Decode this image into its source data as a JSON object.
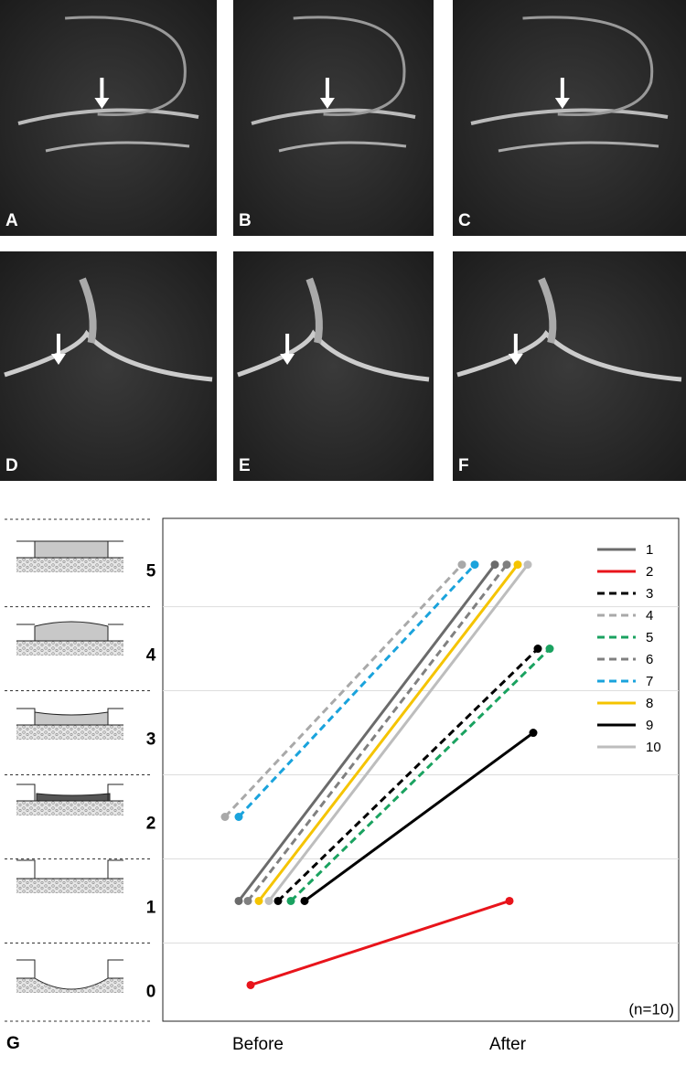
{
  "panels": [
    "A",
    "B",
    "C",
    "D",
    "E",
    "F"
  ],
  "chart_data": {
    "type": "line",
    "panel_label": "G",
    "annotation": "(n=10)",
    "categories": [
      "Before",
      "After"
    ],
    "ylim": [
      -0.43,
      5.55
    ],
    "yticks": [
      0,
      1,
      2,
      3,
      4,
      5
    ],
    "series": [
      {
        "name": "1",
        "color": "#6b6b6b",
        "dashed": false,
        "values": [
          1,
          5
        ]
      },
      {
        "name": "2",
        "color": "#e8141b",
        "dashed": false,
        "values": [
          0,
          1
        ]
      },
      {
        "name": "3",
        "color": "#000000",
        "dashed": true,
        "values": [
          1,
          4
        ]
      },
      {
        "name": "4",
        "color": "#a9a9a9",
        "dashed": true,
        "values": [
          2,
          5
        ]
      },
      {
        "name": "5",
        "color": "#1aa260",
        "dashed": true,
        "values": [
          1,
          4
        ]
      },
      {
        "name": "6",
        "color": "#808080",
        "dashed": true,
        "values": [
          1,
          5
        ]
      },
      {
        "name": "7",
        "color": "#1aa3dc",
        "dashed": true,
        "values": [
          2,
          5
        ]
      },
      {
        "name": "8",
        "color": "#f5c400",
        "dashed": false,
        "values": [
          1,
          5
        ]
      },
      {
        "name": "9",
        "color": "#000000",
        "dashed": false,
        "values": [
          1,
          3
        ]
      },
      {
        "name": "10",
        "color": "#bdbdbd",
        "dashed": false,
        "values": [
          1,
          5
        ]
      }
    ]
  }
}
